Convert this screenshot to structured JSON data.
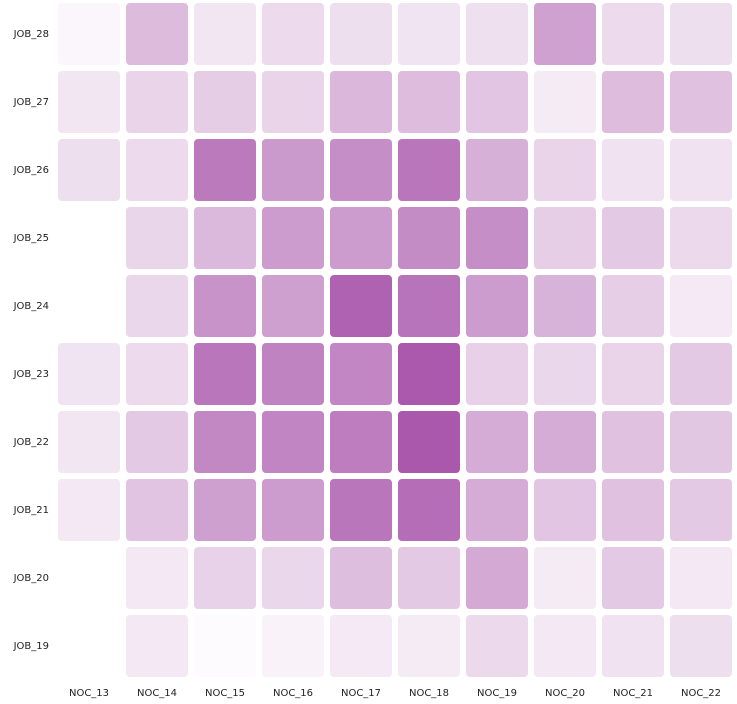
{
  "chart_data": {
    "type": "heatmap",
    "x_categories": [
      "NOC_13",
      "NOC_14",
      "NOC_15",
      "NOC_16",
      "NOC_17",
      "NOC_18",
      "NOC_19",
      "NOC_20",
      "NOC_21",
      "NOC_22"
    ],
    "y_categories": [
      "JOB_28",
      "JOB_27",
      "JOB_26",
      "JOB_25",
      "JOB_24",
      "JOB_23",
      "JOB_22",
      "JOB_21",
      "JOB_20",
      "JOB_19"
    ],
    "values": [
      [
        0.05,
        0.38,
        0.14,
        0.2,
        0.18,
        0.15,
        0.17,
        0.52,
        0.2,
        0.18
      ],
      [
        0.14,
        0.24,
        0.28,
        0.24,
        0.4,
        0.37,
        0.32,
        0.11,
        0.37,
        0.34
      ],
      [
        0.18,
        0.2,
        0.74,
        0.56,
        0.63,
        0.76,
        0.44,
        0.24,
        0.16,
        0.16
      ],
      [
        null,
        0.23,
        0.39,
        0.55,
        0.55,
        0.64,
        0.63,
        0.27,
        0.3,
        0.21
      ],
      [
        null,
        0.22,
        0.6,
        0.53,
        0.87,
        0.77,
        0.55,
        0.42,
        0.27,
        0.12
      ],
      [
        0.15,
        0.2,
        0.76,
        0.69,
        0.67,
        0.92,
        0.26,
        0.22,
        0.24,
        0.3
      ],
      [
        0.14,
        0.3,
        0.66,
        0.68,
        0.72,
        0.93,
        0.46,
        0.46,
        0.34,
        0.31
      ],
      [
        0.13,
        0.33,
        0.53,
        0.55,
        0.76,
        0.81,
        0.46,
        0.32,
        0.34,
        0.3
      ],
      [
        null,
        0.13,
        0.25,
        0.22,
        0.36,
        0.3,
        0.47,
        0.11,
        0.3,
        0.13
      ],
      [
        null,
        0.13,
        0.02,
        0.07,
        0.12,
        0.11,
        0.21,
        0.13,
        0.16,
        0.18
      ]
    ],
    "color_scale": {
      "low": "#ffffff",
      "high": "#a34ba5"
    },
    "title": "",
    "xlabel": "",
    "ylabel": "",
    "legend": "none",
    "grid": false
  }
}
